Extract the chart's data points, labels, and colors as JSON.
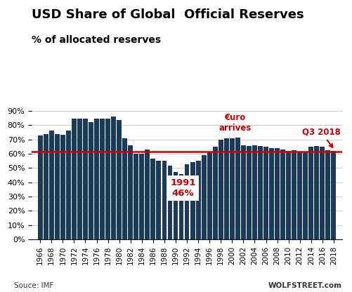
{
  "title": "USD Share of Global  Official Reserves",
  "subtitle": "% of allocated reserves",
  "bar_color": "#1b3a5c",
  "reference_line_y": 61.5,
  "reference_line_color": "#cc0000",
  "years": [
    1966,
    1967,
    1968,
    1969,
    1970,
    1971,
    1972,
    1973,
    1974,
    1975,
    1976,
    1977,
    1978,
    1979,
    1980,
    1981,
    1982,
    1983,
    1984,
    1985,
    1986,
    1987,
    1988,
    1989,
    1990,
    1991,
    1992,
    1993,
    1994,
    1995,
    1996,
    1997,
    1998,
    1999,
    2000,
    2001,
    2002,
    2003,
    2004,
    2005,
    2006,
    2007,
    2008,
    2009,
    2010,
    2011,
    2012,
    2013,
    2014,
    2015,
    2016,
    2017,
    2018
  ],
  "values": [
    73.0,
    74.0,
    76.5,
    74.0,
    73.5,
    76.5,
    84.5,
    84.5,
    84.5,
    82.0,
    84.5,
    84.5,
    84.5,
    86.0,
    83.5,
    71.0,
    66.0,
    60.0,
    60.0,
    63.0,
    56.5,
    55.0,
    55.0,
    51.5,
    47.5,
    46.0,
    52.5,
    54.0,
    55.0,
    59.0,
    61.5,
    65.0,
    70.0,
    71.0,
    71.0,
    71.5,
    66.0,
    65.5,
    66.0,
    65.5,
    65.0,
    64.0,
    64.0,
    63.0,
    62.0,
    62.5,
    61.0,
    61.5,
    65.0,
    65.5,
    65.0,
    62.5,
    62.0
  ],
  "annotation_1991_text1": "1991",
  "annotation_1991_text2": "46%",
  "annotation_euro_text": "€uro\narrives",
  "annotation_q3_text": "Q3 2018",
  "source_text": "Souce: IMF",
  "wolfstreet_text": "WOLFSTREET.com",
  "ylim": [
    0,
    90
  ],
  "yticks": [
    0,
    10,
    20,
    30,
    40,
    50,
    60,
    70,
    80,
    90
  ],
  "grid_color": "#cccccc",
  "bg_color": "#ffffff",
  "title_fontsize": 13,
  "subtitle_fontsize": 10
}
